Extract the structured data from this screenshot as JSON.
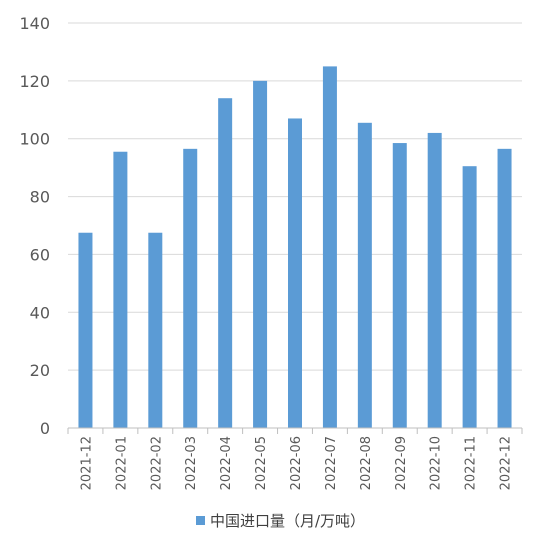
{
  "chart_data": {
    "type": "bar",
    "categories": [
      "2021-12",
      "2022-01",
      "2022-02",
      "2022-03",
      "2022-04",
      "2022-05",
      "2022-06",
      "2022-07",
      "2022-08",
      "2022-09",
      "2022-10",
      "2022-11",
      "2022-12"
    ],
    "series": [
      {
        "name": "中国进口量（月/万吨）",
        "values": [
          67.5,
          95.5,
          67.5,
          96.5,
          114,
          120,
          107,
          125,
          105.5,
          98.5,
          102,
          90.5,
          96.5
        ],
        "color": "#5b9bd5"
      }
    ],
    "title": "",
    "xlabel": "",
    "ylabel": "",
    "ylim": [
      0,
      140
    ],
    "yticks": [
      0,
      20,
      40,
      60,
      80,
      100,
      120,
      140
    ],
    "grid": true,
    "legend_position": "bottom"
  },
  "colors": {
    "bar": "#5b9bd5",
    "grid": "#d9d9d9",
    "axis": "#bfbfbf",
    "text": "#595959"
  }
}
